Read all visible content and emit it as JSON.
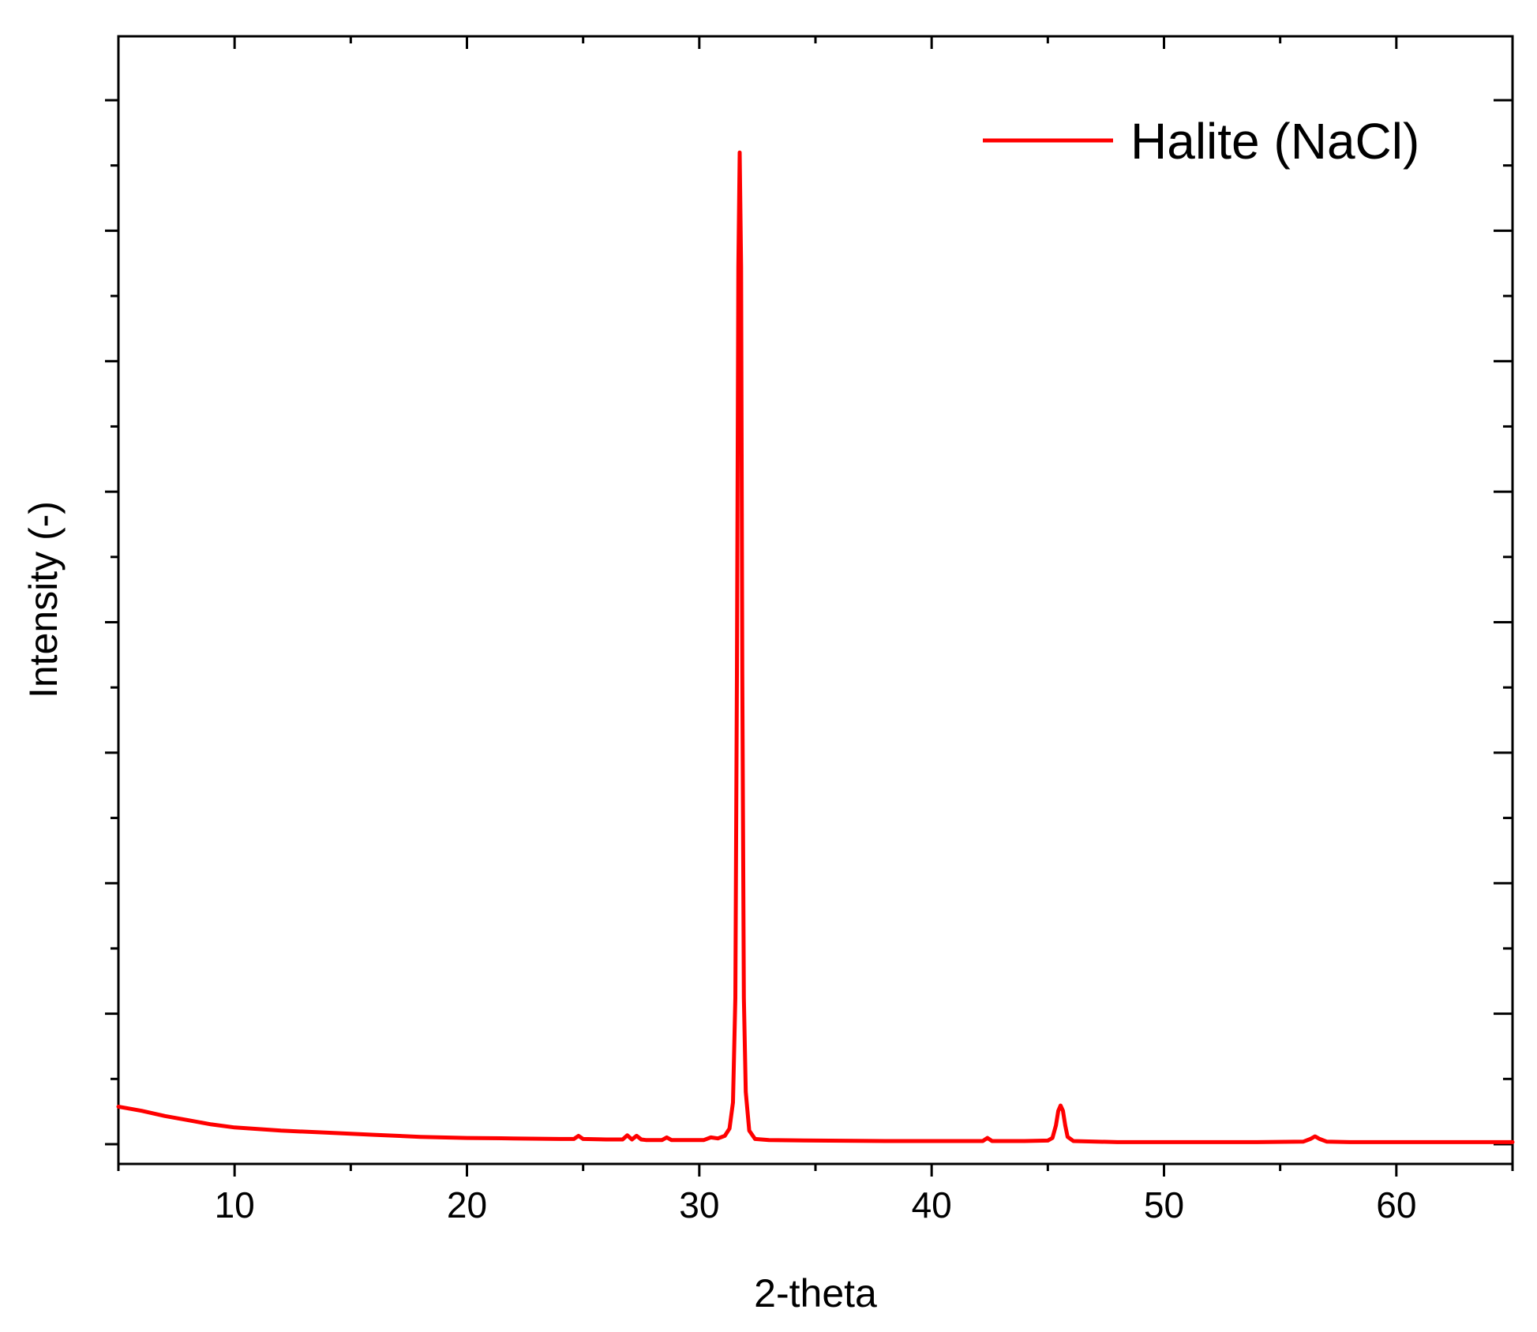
{
  "chart_data": {
    "type": "line",
    "xlabel": "2-theta",
    "ylabel": "Intensity (-)",
    "xlim": [
      5,
      65
    ],
    "ylim": [
      0,
      100
    ],
    "x_ticks": [
      10,
      20,
      30,
      40,
      50,
      60
    ],
    "x_tick_labels": [
      "10",
      "20",
      "30",
      "40",
      "50",
      "60"
    ],
    "x_minor_step": 5,
    "y_tick_labels_shown": false,
    "y_major_ticks": [
      0,
      12.5,
      25,
      37.5,
      50,
      62.5,
      75,
      87.5,
      100
    ],
    "y_minor_ticks": [
      6.25,
      18.75,
      31.25,
      43.75,
      56.25,
      68.75,
      81.25,
      93.75
    ],
    "grid": false,
    "legend_position": "top-right",
    "series": [
      {
        "name": "Halite (NaCl)",
        "color": "#ff0000",
        "x": [
          5,
          6,
          7,
          8,
          9,
          10,
          12,
          14,
          16,
          18,
          20,
          22,
          24,
          24.6,
          24.8,
          25.0,
          26,
          26.7,
          26.9,
          27.1,
          27.3,
          27.5,
          27.7,
          28,
          28.4,
          28.6,
          28.8,
          29.5,
          30.2,
          30.5,
          30.8,
          31.1,
          31.3,
          31.45,
          31.55,
          31.62,
          31.68,
          31.74,
          31.8,
          31.85,
          31.92,
          32.0,
          32.15,
          32.4,
          33,
          35,
          38,
          40,
          42.2,
          42.4,
          42.6,
          44,
          45.0,
          45.2,
          45.35,
          45.45,
          45.55,
          45.65,
          45.75,
          45.85,
          46.1,
          48,
          50,
          52,
          54,
          56.0,
          56.3,
          56.5,
          56.7,
          57.0,
          58,
          60,
          62,
          64,
          65
        ],
        "y": [
          3.6,
          3.2,
          2.7,
          2.3,
          1.9,
          1.6,
          1.3,
          1.1,
          0.9,
          0.7,
          0.6,
          0.55,
          0.5,
          0.5,
          0.8,
          0.5,
          0.45,
          0.45,
          0.85,
          0.45,
          0.8,
          0.45,
          0.4,
          0.4,
          0.4,
          0.65,
          0.4,
          0.4,
          0.4,
          0.65,
          0.55,
          0.8,
          1.5,
          4,
          14,
          45,
          84,
          95,
          84,
          45,
          14,
          5,
          1.3,
          0.5,
          0.4,
          0.35,
          0.3,
          0.3,
          0.3,
          0.6,
          0.3,
          0.3,
          0.35,
          0.6,
          1.8,
          3.2,
          3.7,
          3.2,
          1.8,
          0.7,
          0.3,
          0.2,
          0.2,
          0.2,
          0.2,
          0.25,
          0.5,
          0.75,
          0.5,
          0.25,
          0.2,
          0.2,
          0.2,
          0.2,
          0.2
        ]
      }
    ]
  }
}
